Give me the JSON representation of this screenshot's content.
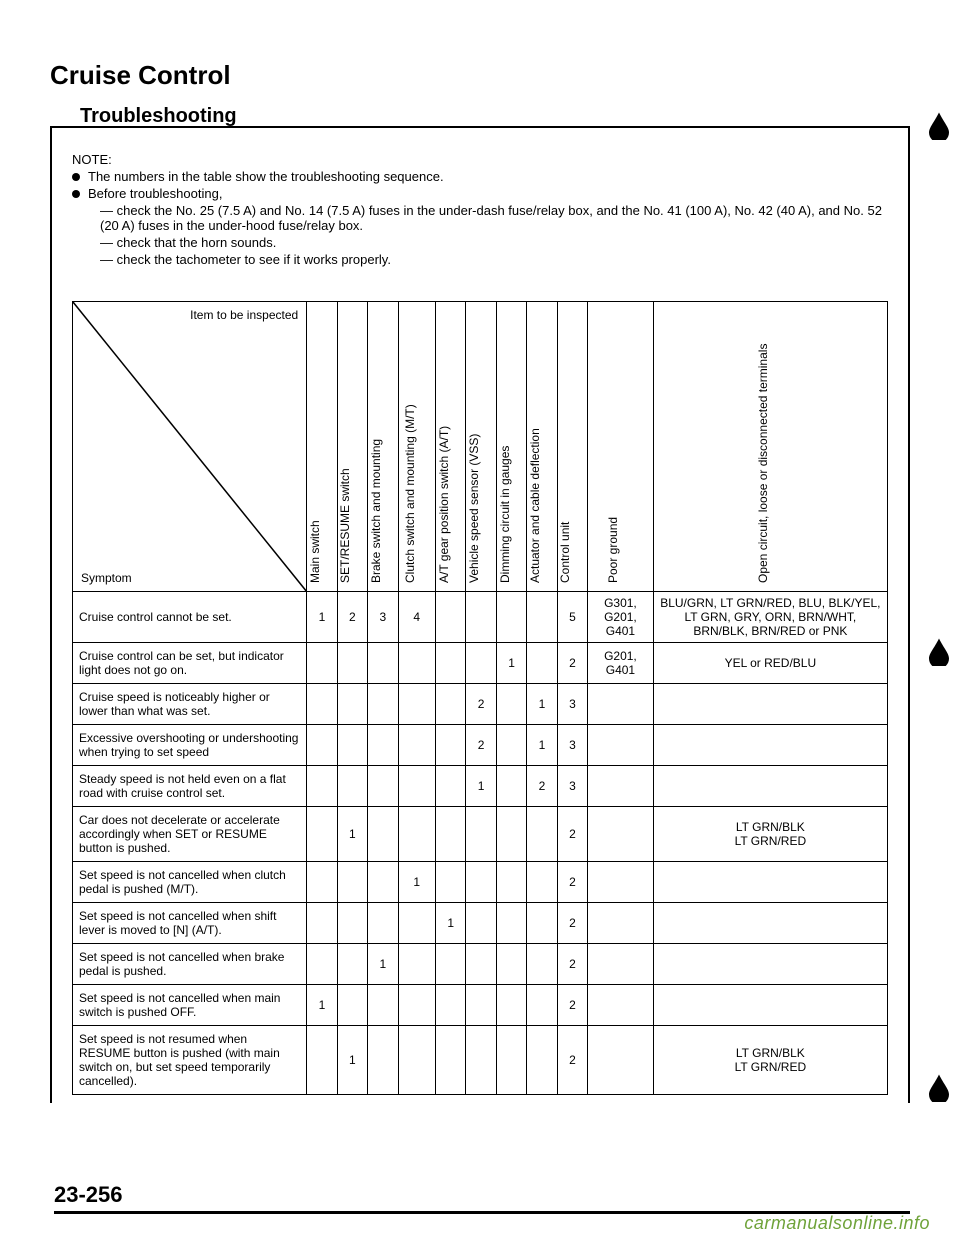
{
  "page": {
    "title": "Cruise Control",
    "subtitle": "Troubleshooting",
    "footer": "23-256",
    "watermark": "carmanualsonline.info"
  },
  "notes": {
    "head": "NOTE:",
    "bullets": [
      "The numbers in the table show the troubleshooting sequence.",
      "Before troubleshooting,"
    ],
    "subs": [
      "check the No. 25 (7.5 A) and No. 14 (7.5 A) fuses in the under-dash fuse/relay box, and the No. 41 (100 A), No. 42 (40 A), and No. 52 (20 A) fuses in the under-hood fuse/relay box.",
      "check that the horn sounds.",
      "check the tachometer to see if it works properly."
    ]
  },
  "table": {
    "diag_top": "Item to be inspected",
    "diag_bottom": "Symptom",
    "col_widths": {
      "symptom": 200,
      "narrow": 26,
      "clutch": 32,
      "poor": 56,
      "wire": 200
    },
    "columns": [
      "Main switch",
      "SET/RESUME switch",
      "Brake switch and mounting",
      "Clutch switch and mounting (M/T)",
      "A/T gear position switch (A/T)",
      "Vehicle speed sensor (VSS)",
      "Dimming circuit in gauges",
      "Actuator and cable deflection",
      "Control unit",
      "Poor ground",
      "Open circuit, loose or disconnected terminals"
    ],
    "rows": [
      {
        "symptom": "Cruise control cannot be set.",
        "cells": [
          "1",
          "2",
          "3",
          "4",
          "",
          "",
          "",
          "",
          "5",
          "G301, G201, G401",
          "BLU/GRN, LT GRN/RED, BLU, BLK/YEL, LT GRN, GRY, ORN, BRN/WHT, BRN/BLK, BRN/RED or PNK"
        ]
      },
      {
        "symptom": "Cruise control can be set, but indicator light does not go on.",
        "cells": [
          "",
          "",
          "",
          "",
          "",
          "",
          "1",
          "",
          "2",
          "G201, G401",
          "YEL or RED/BLU"
        ]
      },
      {
        "symptom": "Cruise speed is noticeably higher or lower than what was set.",
        "cells": [
          "",
          "",
          "",
          "",
          "",
          "2",
          "",
          "1",
          "3",
          "",
          ""
        ]
      },
      {
        "symptom": "Excessive overshooting or undershooting when trying to set speed",
        "cells": [
          "",
          "",
          "",
          "",
          "",
          "2",
          "",
          "1",
          "3",
          "",
          ""
        ]
      },
      {
        "symptom": "Steady speed is not held even on a flat road with cruise control set.",
        "cells": [
          "",
          "",
          "",
          "",
          "",
          "1",
          "",
          "2",
          "3",
          "",
          ""
        ]
      },
      {
        "symptom": "Car does not decelerate or accelerate accordingly when SET or RESUME button is pushed.",
        "cells": [
          "",
          "1",
          "",
          "",
          "",
          "",
          "",
          "",
          "2",
          "",
          "LT GRN/BLK\nLT GRN/RED"
        ]
      },
      {
        "symptom": "Set speed is not cancelled when clutch pedal is pushed (M/T).",
        "cells": [
          "",
          "",
          "",
          "1",
          "",
          "",
          "",
          "",
          "2",
          "",
          ""
        ]
      },
      {
        "symptom": "Set speed is not cancelled when shift lever is moved to [N] (A/T).",
        "cells": [
          "",
          "",
          "",
          "",
          "1",
          "",
          "",
          "",
          "2",
          "",
          ""
        ]
      },
      {
        "symptom": "Set speed is not cancelled when brake pedal is pushed.",
        "cells": [
          "",
          "",
          "1",
          "",
          "",
          "",
          "",
          "",
          "2",
          "",
          ""
        ]
      },
      {
        "symptom": "Set speed is not cancelled when main switch is pushed OFF.",
        "cells": [
          "1",
          "",
          "",
          "",
          "",
          "",
          "",
          "",
          "2",
          "",
          ""
        ]
      },
      {
        "symptom": "Set speed is not resumed when RESUME button is pushed (with main switch on, but set speed temporarily cancelled).",
        "cells": [
          "",
          "1",
          "",
          "",
          "",
          "",
          "",
          "",
          "2",
          "",
          "LT GRN/BLK\nLT GRN/RED"
        ]
      }
    ]
  },
  "style": {
    "font_color": "#000000",
    "bg": "#ffffff",
    "border": "#000000"
  }
}
